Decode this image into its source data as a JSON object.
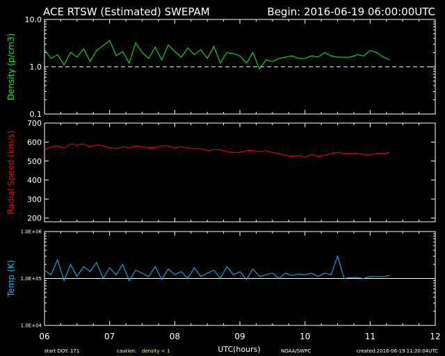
{
  "header": {
    "title": "ACE RTSW (Estimated) SWEPAM",
    "begin": "Begin: 2016-06-19 06:00:00UTC"
  },
  "footer": {
    "start_doy": "start DOY: 171",
    "caution_label": "caution:",
    "caution_value": "density < 1",
    "xlabel": "UTC(hours)",
    "credit": "NOAA/SWPC",
    "created": "created:2016-06-19 11:20:04UTC"
  },
  "colors": {
    "density": "#00ff00",
    "speed": "#ff0000",
    "temp": "#00bfff",
    "axes": "#ffffff",
    "caution": "#ffff00"
  },
  "chart_data": [
    {
      "type": "line",
      "ylabel": "Density (p/cm3)",
      "yscale": "log",
      "ylim": [
        0.1,
        10.0
      ],
      "yticks": [
        "10.0",
        "1.0",
        "0.1"
      ],
      "reference_line": 1.0,
      "xlim": [
        6,
        12
      ],
      "x": [
        6.0,
        6.1,
        6.2,
        6.3,
        6.4,
        6.5,
        6.6,
        6.7,
        6.8,
        6.9,
        7.0,
        7.1,
        7.2,
        7.3,
        7.4,
        7.5,
        7.6,
        7.7,
        7.8,
        7.9,
        8.0,
        8.1,
        8.2,
        8.3,
        8.4,
        8.5,
        8.6,
        8.7,
        8.8,
        8.9,
        9.0,
        9.1,
        9.2,
        9.3,
        9.4,
        9.5,
        9.6,
        9.7,
        9.8,
        9.9,
        10.0,
        10.1,
        10.2,
        10.3,
        10.4,
        10.5,
        10.6,
        10.7,
        10.8,
        10.9,
        11.0,
        11.1,
        11.2,
        11.3
      ],
      "values": [
        2.3,
        1.5,
        1.8,
        1.1,
        2.0,
        1.6,
        2.4,
        1.3,
        2.2,
        2.8,
        3.6,
        1.7,
        2.1,
        1.2,
        3.2,
        2.0,
        1.5,
        2.6,
        1.4,
        2.9,
        2.1,
        1.6,
        2.5,
        1.8,
        2.3,
        1.5,
        2.7,
        1.2,
        2.0,
        1.9,
        1.7,
        1.2,
        2.0,
        0.9,
        1.4,
        1.3,
        1.5,
        1.6,
        1.7,
        1.5,
        1.5,
        1.7,
        1.6,
        2.0,
        1.7,
        1.6,
        1.6,
        1.6,
        1.8,
        1.7,
        2.2,
        2.0,
        1.6,
        1.4
      ]
    },
    {
      "type": "line",
      "ylabel": "Radial Speed (km/s)",
      "ylim": [
        180,
        700
      ],
      "yticks": [
        700,
        600,
        500,
        400,
        300,
        200
      ],
      "xlim": [
        6,
        12
      ],
      "x": [
        6.0,
        6.1,
        6.2,
        6.3,
        6.4,
        6.5,
        6.6,
        6.7,
        6.8,
        6.9,
        7.0,
        7.1,
        7.2,
        7.3,
        7.4,
        7.5,
        7.6,
        7.7,
        7.8,
        7.9,
        8.0,
        8.1,
        8.2,
        8.3,
        8.4,
        8.5,
        8.6,
        8.7,
        8.8,
        8.9,
        9.0,
        9.1,
        9.2,
        9.3,
        9.4,
        9.5,
        9.6,
        9.7,
        9.8,
        9.9,
        10.0,
        10.1,
        10.2,
        10.3,
        10.4,
        10.5,
        10.6,
        10.7,
        10.8,
        10.9,
        11.0,
        11.1,
        11.2,
        11.3
      ],
      "values": [
        560,
        575,
        580,
        570,
        590,
        585,
        590,
        575,
        585,
        580,
        570,
        565,
        575,
        570,
        580,
        575,
        570,
        570,
        580,
        580,
        570,
        575,
        570,
        565,
        565,
        555,
        560,
        560,
        550,
        545,
        545,
        555,
        555,
        550,
        555,
        545,
        540,
        530,
        525,
        530,
        520,
        535,
        525,
        530,
        540,
        545,
        540,
        540,
        540,
        535,
        535,
        540,
        540,
        545
      ]
    },
    {
      "type": "line",
      "ylabel": "Temp (K)",
      "yscale": "log",
      "ylim": [
        10000,
        1000000
      ],
      "yticks": [
        "1.0E+06",
        "1.0E+05",
        "1.0E+04"
      ],
      "reference_line": 100000,
      "xlim": [
        6,
        12
      ],
      "x": [
        6.0,
        6.1,
        6.2,
        6.3,
        6.4,
        6.5,
        6.6,
        6.7,
        6.8,
        6.9,
        7.0,
        7.1,
        7.2,
        7.3,
        7.4,
        7.5,
        7.6,
        7.7,
        7.8,
        7.9,
        8.0,
        8.1,
        8.2,
        8.3,
        8.4,
        8.5,
        8.6,
        8.7,
        8.8,
        8.9,
        9.0,
        9.1,
        9.2,
        9.3,
        9.4,
        9.5,
        9.6,
        9.7,
        9.8,
        9.9,
        10.0,
        10.1,
        10.2,
        10.3,
        10.4,
        10.5,
        10.6,
        10.7,
        10.8,
        10.9,
        11.0,
        11.1,
        11.2,
        11.3
      ],
      "values": [
        150000,
        120000,
        250000,
        90000,
        200000,
        110000,
        180000,
        140000,
        220000,
        100000,
        170000,
        120000,
        200000,
        90000,
        150000,
        130000,
        110000,
        180000,
        95000,
        160000,
        120000,
        140000,
        100000,
        170000,
        110000,
        130000,
        150000,
        100000,
        180000,
        120000,
        140000,
        95000,
        160000,
        110000,
        120000,
        130000,
        100000,
        130000,
        115000,
        125000,
        120000,
        130000,
        110000,
        130000,
        120000,
        300000,
        100000,
        105000,
        105000,
        100000,
        110000,
        110000,
        110000,
        115000
      ]
    }
  ],
  "x_ticks": [
    "06",
    "07",
    "08",
    "09",
    "10",
    "11",
    "12"
  ]
}
